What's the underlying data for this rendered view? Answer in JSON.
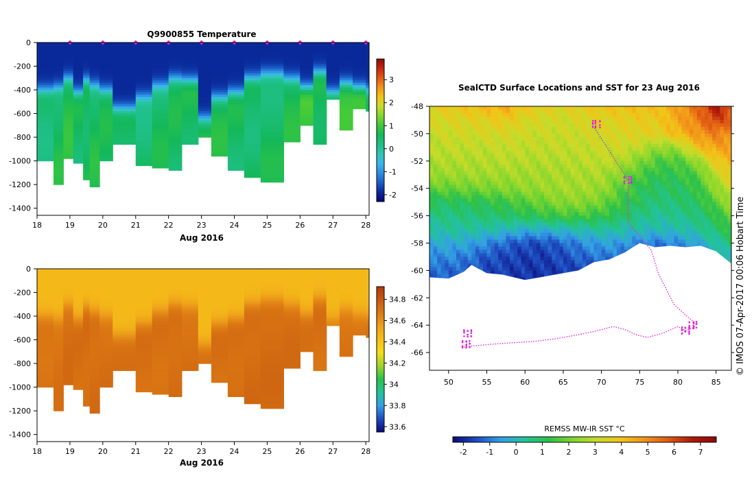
{
  "colors": {
    "temp_ramp": [
      "#08086e",
      "#0a2a9a",
      "#1a5fc8",
      "#2b8fe0",
      "#3cb6ec",
      "#2fc7b4",
      "#1fbf86",
      "#14b85a",
      "#3ec93a",
      "#7fd62e",
      "#c6dc2a",
      "#f2c418",
      "#f2941a",
      "#e05a14",
      "#c42a0e",
      "#8e0a06"
    ],
    "sal_ramp": [
      "#0a0a7a",
      "#1e4cc0",
      "#34a0e6",
      "#22c39a",
      "#2cc14a",
      "#9ed42a",
      "#f6dc1a",
      "#f6c018",
      "#eea01a",
      "#dc7a14",
      "#c85a10",
      "#b0380c"
    ],
    "sst_ramp": [
      "#0a0a7a",
      "#1e4cc0",
      "#34a0e6",
      "#22c39a",
      "#2cc14a",
      "#7fd62e",
      "#c6dc2a",
      "#f2c418",
      "#f2941a",
      "#e05a14",
      "#b0180a",
      "#8e0a06"
    ],
    "track": "#e026d6",
    "frame": "#000000"
  },
  "chart_data": [
    {
      "id": "temperature-section",
      "type": "heatmap",
      "title": "Q9900855  Temperature",
      "xlabel": "Aug 2016",
      "ylabel": "",
      "x_ticks": [
        "18",
        "19",
        "20",
        "21",
        "22",
        "23",
        "24",
        "25",
        "26",
        "27",
        "28"
      ],
      "x_tick_values": [
        18,
        19,
        20,
        21,
        22,
        23,
        24,
        25,
        26,
        27,
        28
      ],
      "y_ticks": [
        "0",
        "-200",
        "-400",
        "-600",
        "-800",
        "-1000",
        "-1200",
        "-1400"
      ],
      "y_tick_values": [
        0,
        -200,
        -400,
        -600,
        -800,
        -1000,
        -1200,
        -1400
      ],
      "xlim": [
        18,
        28.1
      ],
      "ylim": [
        -1460,
        0
      ],
      "colorbar_ticks": [
        "3",
        "2",
        "1",
        "0",
        "-1",
        "-2"
      ],
      "colorbar_tick_values": [
        3,
        2,
        1,
        0,
        -1,
        -2
      ],
      "colorbar_range": [
        -2.3,
        3.9
      ],
      "profile_markers_x": [
        19.0,
        20.0,
        21.0,
        22.0,
        23.0,
        24.0,
        25.0,
        26.0,
        27.0,
        28.0
      ],
      "profiles": [
        {
          "x": 18.0,
          "max_depth": -1000,
          "surface": -1.9,
          "thermo": -400,
          "deep": 0.4
        },
        {
          "x": 18.5,
          "max_depth": -1200,
          "surface": -1.9,
          "thermo": -380,
          "deep": 0.6
        },
        {
          "x": 18.8,
          "max_depth": -980,
          "surface": -1.9,
          "thermo": -300,
          "deep": 0.7
        },
        {
          "x": 19.1,
          "max_depth": -1020,
          "surface": -1.9,
          "thermo": -420,
          "deep": 0.5
        },
        {
          "x": 19.4,
          "max_depth": -1150,
          "surface": -1.9,
          "thermo": -320,
          "deep": 0.6
        },
        {
          "x": 19.6,
          "max_depth": -1210,
          "surface": -1.9,
          "thermo": -360,
          "deep": 0.6
        },
        {
          "x": 19.9,
          "max_depth": -1000,
          "surface": -1.9,
          "thermo": -400,
          "deep": 0.5
        },
        {
          "x": 20.3,
          "max_depth": -860,
          "surface": -1.9,
          "thermo": -560,
          "deep": 0.6
        },
        {
          "x": 21.0,
          "max_depth": -1040,
          "surface": -1.9,
          "thermo": -460,
          "deep": 0.4
        },
        {
          "x": 21.5,
          "max_depth": -1060,
          "surface": -1.9,
          "thermo": -360,
          "deep": 0.5
        },
        {
          "x": 22.0,
          "max_depth": -1080,
          "surface": -1.9,
          "thermo": -300,
          "deep": 0.5
        },
        {
          "x": 22.4,
          "max_depth": -850,
          "surface": -1.9,
          "thermo": -320,
          "deep": 0.6
        },
        {
          "x": 22.9,
          "max_depth": -790,
          "surface": -1.9,
          "thermo": -640,
          "deep": 0.8
        },
        {
          "x": 23.3,
          "max_depth": -960,
          "surface": -1.9,
          "thermo": -460,
          "deep": 0.6
        },
        {
          "x": 23.8,
          "max_depth": -1070,
          "surface": -1.9,
          "thermo": -420,
          "deep": 0.5
        },
        {
          "x": 24.3,
          "max_depth": -1130,
          "surface": -1.9,
          "thermo": -300,
          "deep": 0.5
        },
        {
          "x": 24.8,
          "max_depth": -1180,
          "surface": -1.9,
          "thermo": -260,
          "deep": 0.5
        },
        {
          "x": 25.5,
          "max_depth": -840,
          "surface": -1.9,
          "thermo": -300,
          "deep": 0.6
        },
        {
          "x": 26.0,
          "max_depth": -690,
          "surface": -1.9,
          "thermo": -380,
          "deep": 0.9
        },
        {
          "x": 26.4,
          "max_depth": -850,
          "surface": -1.9,
          "thermo": -250,
          "deep": 0.7
        },
        {
          "x": 26.8,
          "max_depth": -480,
          "surface": -1.9,
          "thermo": -420,
          "deep": 1.0
        },
        {
          "x": 27.2,
          "max_depth": -740,
          "surface": -1.9,
          "thermo": -340,
          "deep": 0.8
        },
        {
          "x": 27.6,
          "max_depth": -560,
          "surface": -1.9,
          "thermo": -380,
          "deep": 0.9
        },
        {
          "x": 28.0,
          "max_depth": -580,
          "surface": -1.9,
          "thermo": -400,
          "deep": 0.8
        }
      ]
    },
    {
      "id": "salinity-section",
      "type": "heatmap",
      "title": "",
      "xlabel": "Aug 2016",
      "x_ticks": [
        "18",
        "19",
        "20",
        "21",
        "22",
        "23",
        "24",
        "25",
        "26",
        "27",
        "28"
      ],
      "x_tick_values": [
        18,
        19,
        20,
        21,
        22,
        23,
        24,
        25,
        26,
        27,
        28
      ],
      "y_ticks": [
        "0",
        "-200",
        "-400",
        "-600",
        "-800",
        "-1000",
        "-1200",
        "-1400"
      ],
      "y_tick_values": [
        0,
        -200,
        -400,
        -600,
        -800,
        -1000,
        -1200,
        -1400
      ],
      "xlim": [
        18,
        28.1
      ],
      "ylim": [
        -1460,
        0
      ],
      "colorbar_ticks": [
        "34.8",
        "34.6",
        "34.4",
        "34.2",
        "34",
        "33.8",
        "33.6"
      ],
      "colorbar_tick_values": [
        34.8,
        34.6,
        34.4,
        34.2,
        34.0,
        33.8,
        33.6
      ],
      "colorbar_range": [
        33.55,
        34.92
      ],
      "profiles": [
        {
          "x": 18.0,
          "max_depth": -1000,
          "surface": 34.45,
          "halo": -400,
          "deep": 34.7
        },
        {
          "x": 18.5,
          "max_depth": -1200,
          "surface": 34.45,
          "halo": -420,
          "deep": 34.7
        },
        {
          "x": 18.8,
          "max_depth": -980,
          "surface": 34.45,
          "halo": -300,
          "deep": 34.72
        },
        {
          "x": 19.1,
          "max_depth": -1020,
          "surface": 34.45,
          "halo": -420,
          "deep": 34.71
        },
        {
          "x": 19.4,
          "max_depth": -1150,
          "surface": 34.45,
          "halo": -320,
          "deep": 34.72
        },
        {
          "x": 19.6,
          "max_depth": -1210,
          "surface": 34.45,
          "halo": -360,
          "deep": 34.72
        },
        {
          "x": 19.9,
          "max_depth": -1000,
          "surface": 34.45,
          "halo": -400,
          "deep": 34.71
        },
        {
          "x": 20.3,
          "max_depth": -860,
          "surface": 34.45,
          "halo": -560,
          "deep": 34.7
        },
        {
          "x": 21.0,
          "max_depth": -1040,
          "surface": 34.45,
          "halo": -460,
          "deep": 34.71
        },
        {
          "x": 21.5,
          "max_depth": -1060,
          "surface": 34.45,
          "halo": -360,
          "deep": 34.71
        },
        {
          "x": 22.0,
          "max_depth": -1080,
          "surface": 34.45,
          "halo": -300,
          "deep": 34.72
        },
        {
          "x": 22.4,
          "max_depth": -850,
          "surface": 34.45,
          "halo": -320,
          "deep": 34.71
        },
        {
          "x": 22.9,
          "max_depth": -790,
          "surface": 34.45,
          "halo": -640,
          "deep": 34.69
        },
        {
          "x": 23.3,
          "max_depth": -960,
          "surface": 34.45,
          "halo": -460,
          "deep": 34.71
        },
        {
          "x": 23.8,
          "max_depth": -1070,
          "surface": 34.45,
          "halo": -420,
          "deep": 34.72
        },
        {
          "x": 24.3,
          "max_depth": -1130,
          "surface": 34.45,
          "halo": -300,
          "deep": 34.73
        },
        {
          "x": 24.8,
          "max_depth": -1180,
          "surface": 34.45,
          "halo": -260,
          "deep": 34.73
        },
        {
          "x": 25.5,
          "max_depth": -840,
          "surface": 34.45,
          "halo": -300,
          "deep": 34.72
        },
        {
          "x": 26.0,
          "max_depth": -690,
          "surface": 34.45,
          "halo": -380,
          "deep": 34.7
        },
        {
          "x": 26.4,
          "max_depth": -850,
          "surface": 34.45,
          "halo": -250,
          "deep": 34.71
        },
        {
          "x": 26.8,
          "max_depth": -480,
          "surface": 34.45,
          "halo": -420,
          "deep": 34.68
        },
        {
          "x": 27.2,
          "max_depth": -740,
          "surface": 34.45,
          "halo": -340,
          "deep": 34.7
        },
        {
          "x": 27.6,
          "max_depth": -560,
          "surface": 34.45,
          "halo": -380,
          "deep": 34.68
        },
        {
          "x": 28.0,
          "max_depth": -580,
          "surface": 34.45,
          "halo": -400,
          "deep": 34.69
        }
      ]
    },
    {
      "id": "sst-map",
      "type": "heatmap",
      "title": "SealCTD Surface Locations and SST for 23 Aug 2016",
      "x_ticks": [
        "50",
        "55",
        "60",
        "65",
        "70",
        "75",
        "80",
        "85"
      ],
      "x_tick_values": [
        50,
        55,
        60,
        65,
        70,
        75,
        80,
        85
      ],
      "y_ticks": [
        "-48",
        "-50",
        "-52",
        "-54",
        "-56",
        "-58",
        "-60",
        "-62",
        "-64",
        "-66"
      ],
      "y_tick_values": [
        -48,
        -50,
        -52,
        -54,
        -56,
        -58,
        -60,
        -62,
        -64,
        -66
      ],
      "xlim": [
        47.5,
        87.0
      ],
      "ylim": [
        -67.3,
        -48.0
      ],
      "colorbar_label": "REMSS MW-IR SST °C",
      "colorbar_ticks": [
        "-2",
        "-1",
        "0",
        "1",
        "2",
        "3",
        "4",
        "5",
        "6",
        "7"
      ],
      "colorbar_tick_values": [
        -2,
        -1,
        0,
        1,
        2,
        3,
        4,
        5,
        6,
        7
      ],
      "colorbar_range": [
        -2.4,
        7.6
      ],
      "ice_edge": [
        [
          47.5,
          -60.5
        ],
        [
          50,
          -60.6
        ],
        [
          52,
          -60.1
        ],
        [
          53,
          -59.6
        ],
        [
          55,
          -60.2
        ],
        [
          57,
          -60.3
        ],
        [
          60,
          -60.7
        ],
        [
          62,
          -60.5
        ],
        [
          65,
          -60.2
        ],
        [
          67,
          -60.0
        ],
        [
          69,
          -59.4
        ],
        [
          71,
          -59.2
        ],
        [
          73,
          -58.7
        ],
        [
          75,
          -58.0
        ],
        [
          77,
          -58.3
        ],
        [
          79,
          -58.2
        ],
        [
          81,
          -58.3
        ],
        [
          83,
          -58.2
        ],
        [
          85,
          -58.6
        ],
        [
          87,
          -59.5
        ]
      ],
      "track": [
        [
          52.0,
          -65.6
        ],
        [
          53.5,
          -65.5
        ],
        [
          55.5,
          -65.4
        ],
        [
          58,
          -65.3
        ],
        [
          61,
          -65.2
        ],
        [
          64,
          -65.0
        ],
        [
          67,
          -64.7
        ],
        [
          69.5,
          -64.4
        ],
        [
          71.5,
          -64.1
        ],
        [
          73,
          -64.3
        ],
        [
          74.5,
          -64.7
        ],
        [
          76,
          -64.9
        ],
        [
          78,
          -64.6
        ],
        [
          80,
          -64.1
        ],
        [
          81,
          -64.4
        ],
        [
          82,
          -64.2
        ],
        [
          82.5,
          -63.9
        ],
        [
          81.5,
          -63.5
        ],
        [
          79.5,
          -62.5
        ],
        [
          77.5,
          -60.3
        ],
        [
          76.5,
          -58.5
        ],
        [
          75,
          -57.5
        ],
        [
          73.5,
          -56.5
        ],
        [
          73.5,
          -53.4
        ],
        [
          69,
          -49.5
        ]
      ],
      "track_clusters": [
        [
          52.3,
          -65.4
        ],
        [
          52.5,
          -64.6
        ],
        [
          81.0,
          -64.4
        ],
        [
          82.0,
          -64.0
        ],
        [
          69.3,
          -49.3
        ],
        [
          73.5,
          -53.4
        ]
      ],
      "sst_field": {
        "lats": [
          -48,
          -49,
          -50,
          -51,
          -52,
          -53,
          -54,
          -55,
          -56,
          -57,
          -58,
          -59,
          -60
        ],
        "lons": [
          47.5,
          50,
          52.5,
          55,
          57.5,
          60,
          62.5,
          65,
          67.5,
          70,
          72.5,
          75,
          77.5,
          80,
          82.5,
          85,
          87
        ],
        "values": [
          [
            3.6,
            3.8,
            4.0,
            4.2,
            4.5,
            3.8,
            3.6,
            3.5,
            3.7,
            3.9,
            4.0,
            4.1,
            4.0,
            4.6,
            5.5,
            6.8,
            6.0
          ],
          [
            3.3,
            3.4,
            3.5,
            3.6,
            3.8,
            3.4,
            3.3,
            3.2,
            3.4,
            3.5,
            3.6,
            3.7,
            3.8,
            4.5,
            5.2,
            6.2,
            5.6
          ],
          [
            3.1,
            3.2,
            3.2,
            3.3,
            3.3,
            3.2,
            3.1,
            3.1,
            3.2,
            3.3,
            3.4,
            3.5,
            3.6,
            4.2,
            4.8,
            5.2,
            5.0
          ],
          [
            2.9,
            3.0,
            3.0,
            3.0,
            3.1,
            3.0,
            3.0,
            3.0,
            3.0,
            3.1,
            3.2,
            3.0,
            2.4,
            2.6,
            4.0,
            4.6,
            4.6
          ],
          [
            2.7,
            2.8,
            2.8,
            2.8,
            2.9,
            2.8,
            2.8,
            2.8,
            2.9,
            3.0,
            2.8,
            2.2,
            1.6,
            1.6,
            2.4,
            3.8,
            4.2
          ],
          [
            2.5,
            2.5,
            2.6,
            2.6,
            2.6,
            2.6,
            2.6,
            2.7,
            2.7,
            2.7,
            2.2,
            1.6,
            1.2,
            1.3,
            1.6,
            3.0,
            3.8
          ],
          [
            1.8,
            1.9,
            2.0,
            2.1,
            2.2,
            2.4,
            2.5,
            2.6,
            2.6,
            2.5,
            1.8,
            1.2,
            0.9,
            1.0,
            1.3,
            2.4,
            3.2
          ],
          [
            1.0,
            1.0,
            1.1,
            1.2,
            1.4,
            1.7,
            2.0,
            2.3,
            2.3,
            2.0,
            1.4,
            1.0,
            0.7,
            0.8,
            1.0,
            1.8,
            2.6
          ],
          [
            0.6,
            0.6,
            0.7,
            0.8,
            0.9,
            1.1,
            1.3,
            1.5,
            1.5,
            1.3,
            1.0,
            0.6,
            0.4,
            0.5,
            0.7,
            1.2,
            2.0
          ],
          [
            0.2,
            0.3,
            0.3,
            0.2,
            0.0,
            -0.2,
            -0.2,
            0.0,
            0.2,
            0.3,
            0.2,
            0.1,
            0.0,
            0.1,
            0.3,
            0.8,
            1.4
          ],
          [
            -0.4,
            -0.3,
            -0.4,
            -0.8,
            -1.2,
            -1.5,
            -1.5,
            -1.2,
            -0.8,
            -0.5,
            -0.6,
            -0.9,
            -1.0,
            -0.8,
            -0.4,
            0.2,
            0.8
          ],
          [
            -0.8,
            -0.8,
            -1.0,
            -1.4,
            -1.6,
            -1.7,
            -1.7,
            -1.5,
            -1.2,
            -1.0,
            -1.1,
            -1.3,
            -1.4,
            -1.2,
            -0.8,
            -0.3,
            0.2
          ],
          [
            -1.2,
            -1.2,
            -1.3,
            -1.6,
            -1.7,
            -1.8,
            -1.8,
            -1.7,
            -1.6,
            -1.4,
            -1.5,
            -1.6,
            -1.6,
            -1.5,
            -1.2,
            -0.8,
            -0.4
          ]
        ]
      }
    }
  ],
  "annotations": {
    "copyright_text": "© IMOS 07-Apr-2017 00:06 Hobart Time"
  }
}
